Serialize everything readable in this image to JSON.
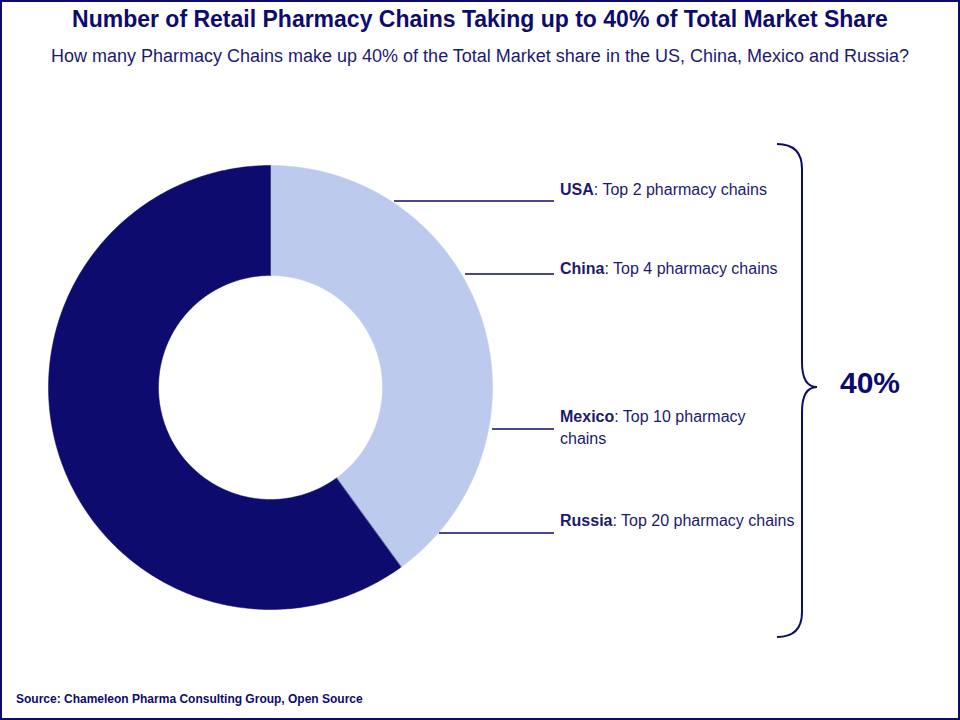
{
  "chart_data": {
    "type": "donut",
    "title": "Number of Retail Pharmacy Chains Taking up to 40% of Total Market Share",
    "subtitle": "How many Pharmacy Chains make up 40% of the Total Market share in the US, China, Mexico and Russia?",
    "values": [
      40,
      60
    ],
    "value_labels": [
      "40%",
      null
    ],
    "colors": [
      "#bccbed",
      "#0e0b6e"
    ],
    "annotations": [
      {
        "label": "USA",
        "text": ": Top 2 pharmacy chains"
      },
      {
        "label": "China",
        "text": ": Top 4 pharmacy chains"
      },
      {
        "label": "Mexico",
        "text": ": Top 10 pharmacy chains"
      },
      {
        "label": "Russia",
        "text": ": Top 20 pharmacy chains"
      }
    ],
    "source": "Source:  Chameleon Pharma Consulting Group, Open Source"
  }
}
